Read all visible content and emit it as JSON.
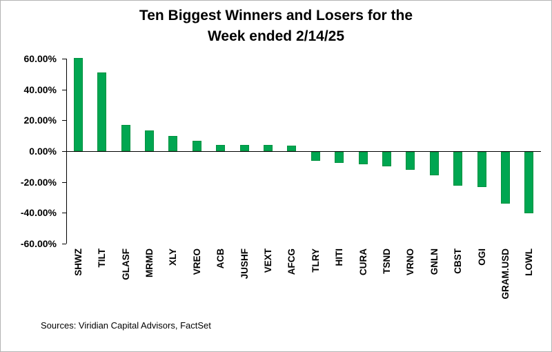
{
  "title": {
    "line1": "Ten Biggest Winners and Losers for the",
    "line2": "Week ended 2/14/25"
  },
  "source": "Sources: Viridian Capital Advisors, FactSet",
  "chart_data": {
    "type": "bar",
    "title": "Ten Biggest Winners and Losers for the Week ended 2/14/25",
    "categories": [
      "SHWZ",
      "TILT",
      "GLASF",
      "MRMD",
      "XLY",
      "VREO",
      "ACB",
      "JUSHF",
      "VEXT",
      "AFCG",
      "TLRY",
      "HITI",
      "CURA",
      "TSND",
      "VRNO",
      "GNLN",
      "CBST",
      "OGI",
      "GRAM.USD",
      "LOWL"
    ],
    "values": [
      60.4,
      51,
      17,
      13.5,
      10,
      6.5,
      4,
      4,
      4,
      3.5,
      -6,
      -7,
      -8,
      -9.5,
      -11.5,
      -15,
      -22,
      -23,
      -33.5,
      -40
    ],
    "value_unit": "%",
    "xlabel": "",
    "ylabel": "",
    "ylim": [
      -60,
      60
    ],
    "yticks": [
      60,
      40,
      20,
      0,
      -20,
      -40,
      -60
    ],
    "ytick_labels": [
      "60.00%",
      "40.00%",
      "20.00%",
      "0.00%",
      "-20.00%",
      "-40.00%",
      "-60.00%"
    ],
    "bar_color": "#00A651",
    "bar_border_color": "#00913f",
    "grid": false,
    "legend_position": "none"
  }
}
